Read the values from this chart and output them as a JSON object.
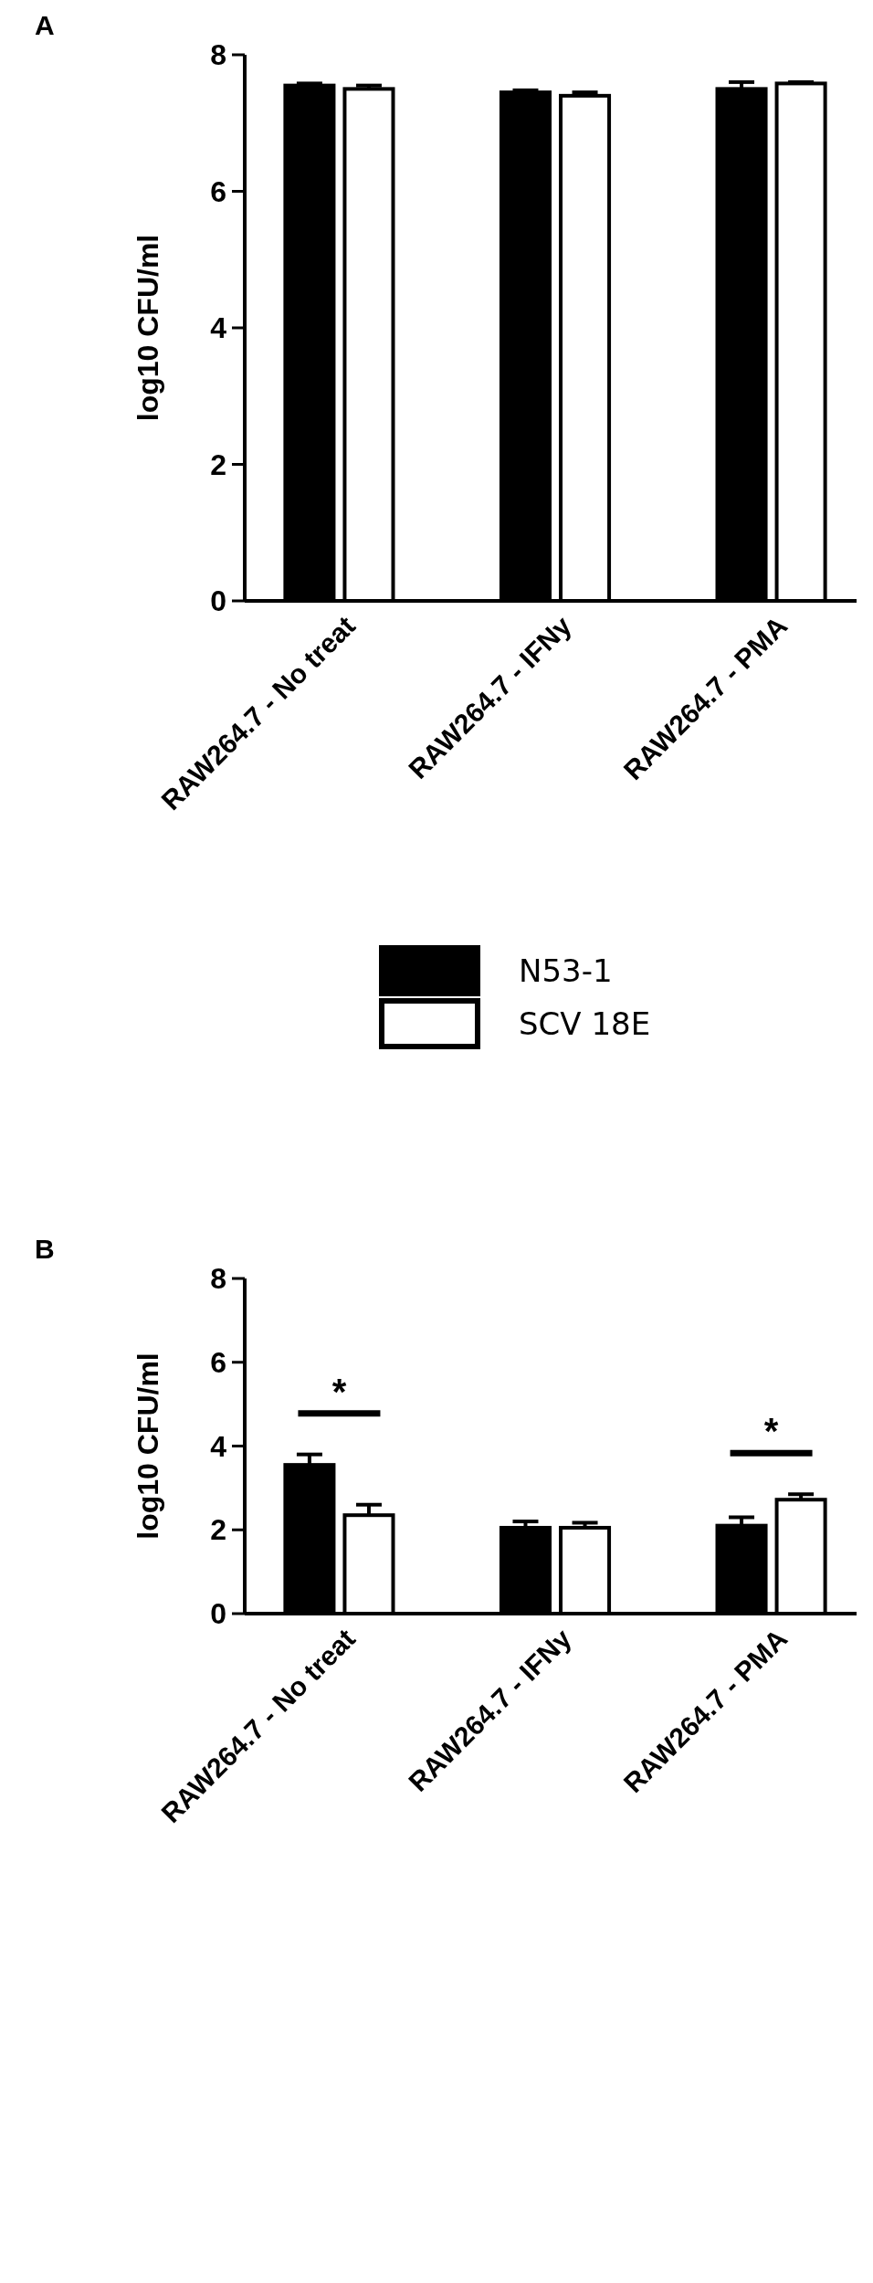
{
  "chart_data": [
    {
      "type": "bar",
      "title": "A",
      "ylabel": "log10 CFU/ml",
      "categories": [
        "RAW264.7 - No treat",
        "RAW264.7 - IFNy",
        "RAW264.7 - PMA"
      ],
      "series": [
        {
          "name": "N53-1",
          "color": "#000000",
          "values": [
            7.55,
            7.45,
            7.5
          ],
          "errors": [
            [
              7.55,
              7.58
            ],
            [
              7.45,
              7.48
            ],
            [
              7.5,
              7.6
            ]
          ]
        },
        {
          "name": "SCV 18E",
          "color": "#ffffff",
          "values": [
            7.5,
            7.4,
            7.58
          ],
          "errors": [
            [
              7.5,
              7.55
            ],
            [
              7.4,
              7.45
            ],
            [
              7.58,
              7.6
            ]
          ]
        }
      ],
      "ylim": [
        0,
        8
      ],
      "yticks": [
        0,
        2,
        4,
        6,
        8
      ],
      "legend": "bottom"
    },
    {
      "type": "bar",
      "title": "B",
      "ylabel": "log10 CFU/ml",
      "categories": [
        "RAW264.7 - No treat",
        "RAW264.7 - IFNy",
        "RAW264.7 - PMA"
      ],
      "series": [
        {
          "color": "#000000",
          "values": [
            3.55,
            2.05,
            2.1
          ],
          "errors": [
            [
              3.55,
              3.8
            ],
            [
              2.05,
              2.2
            ],
            [
              2.1,
              2.3
            ]
          ]
        },
        {
          "color": "#ffffff",
          "values": [
            2.35,
            2.05,
            2.72
          ],
          "errors": [
            [
              2.35,
              2.6
            ],
            [
              2.05,
              2.17
            ],
            [
              2.72,
              2.85
            ]
          ]
        }
      ],
      "ylim": [
        0,
        8
      ],
      "yticks": [
        0,
        2,
        4,
        6,
        8
      ],
      "annotations": [
        "*",
        "*"
      ]
    }
  ]
}
